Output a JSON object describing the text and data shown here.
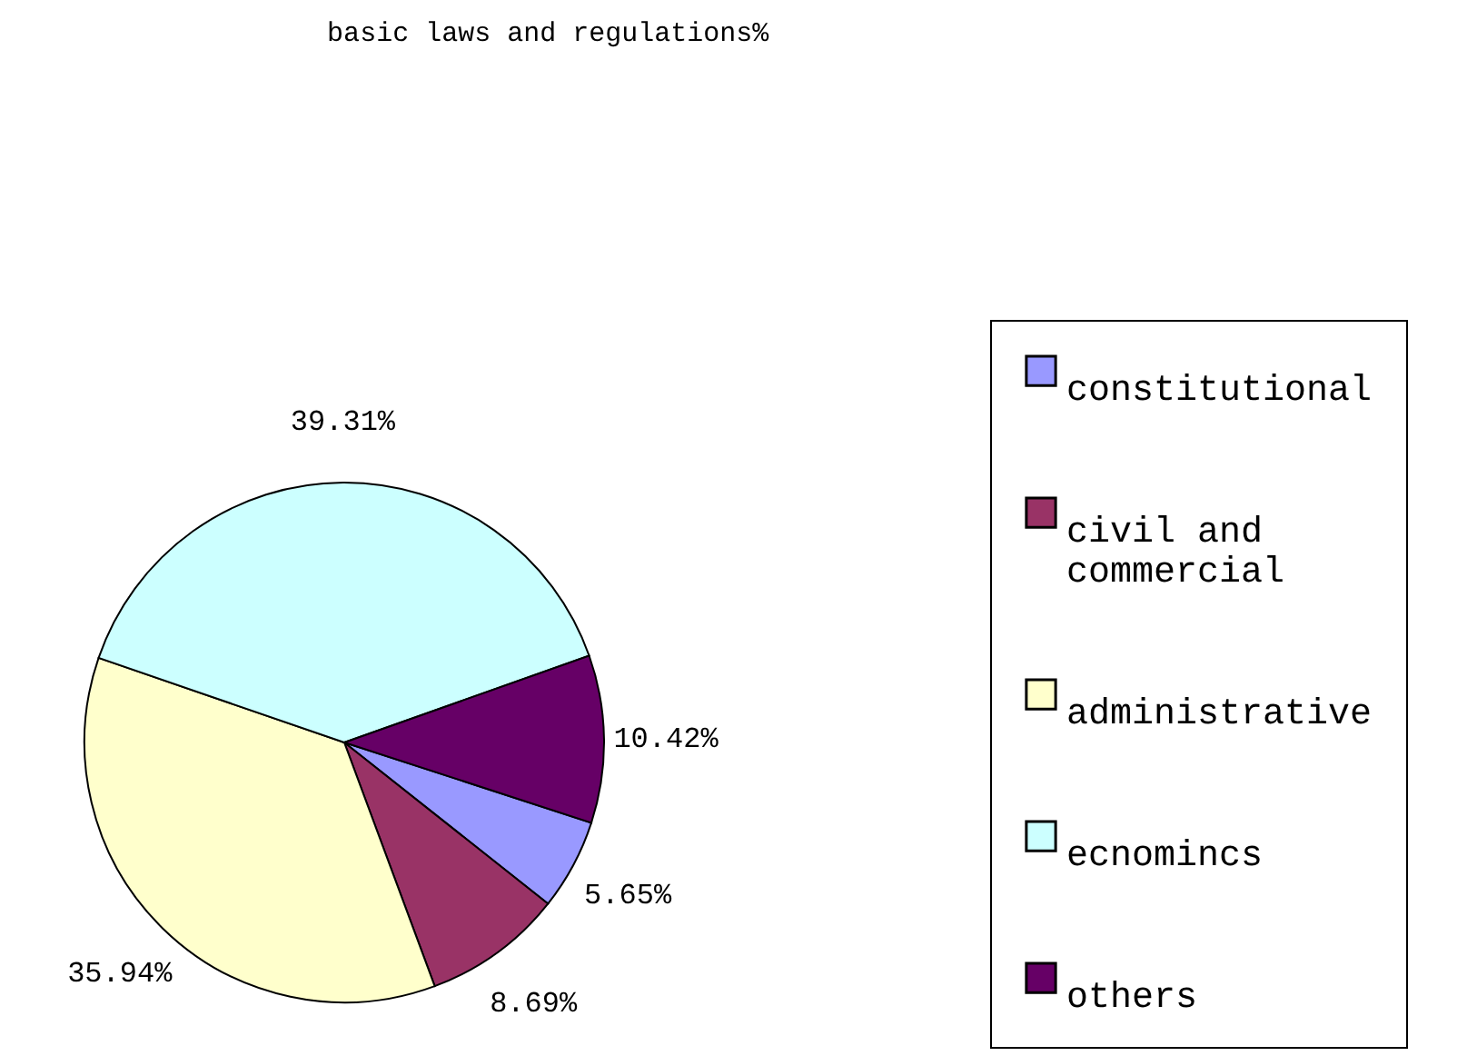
{
  "chart_data": {
    "type": "pie",
    "title": "basic laws and regulations%",
    "categories": [
      "constitutional",
      "civil and commercial",
      "administrative",
      "ecnomincs",
      "others"
    ],
    "values": [
      5.65,
      8.69,
      35.94,
      39.31,
      10.42
    ],
    "value_labels": [
      "5.65%",
      "8.69%",
      "35.94%",
      "39.31%",
      "10.42%"
    ],
    "colors": [
      "#9999ff",
      "#993366",
      "#ffffcc",
      "#ccffff",
      "#660066"
    ],
    "legend": "right"
  }
}
